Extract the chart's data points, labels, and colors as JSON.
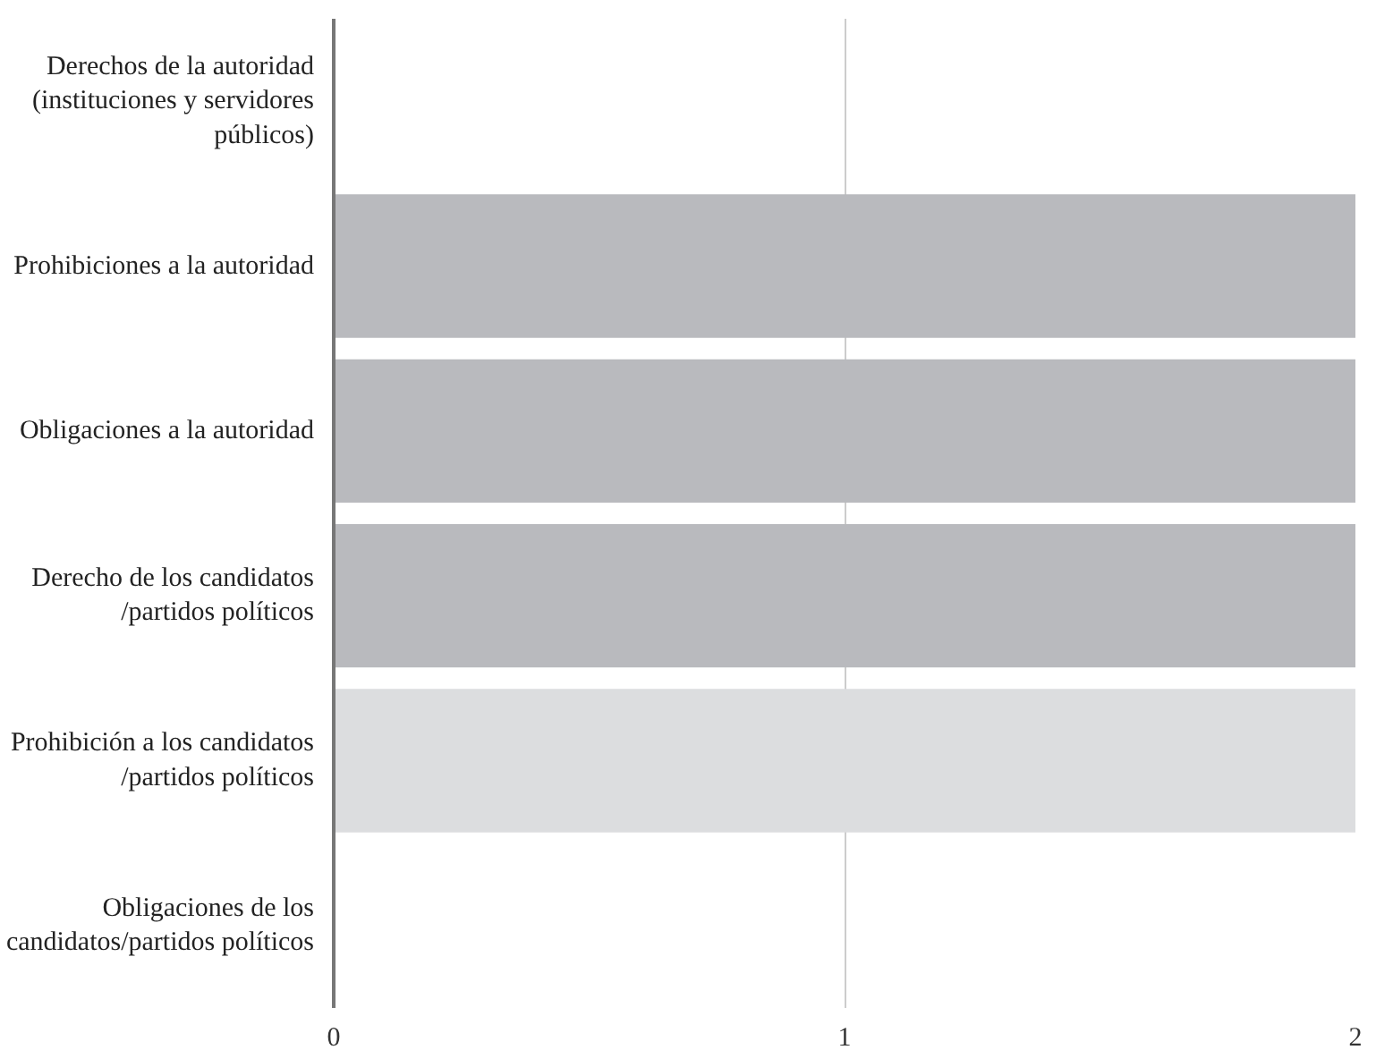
{
  "chart_data": {
    "type": "bar",
    "orientation": "horizontal",
    "categories": [
      "Derechos de la autoridad\n(instituciones y servidores\npúblicos)",
      "Prohibiciones a la autoridad",
      "Obligaciones a la autoridad",
      "Derecho de los candidatos\n/partidos políticos",
      "Prohibición a los candidatos\n/partidos políticos",
      "Obligaciones de los\ncandidatos/partidos políticos"
    ],
    "values": [
      0,
      2,
      2,
      2,
      2,
      0
    ],
    "colors": [
      "#b9babe",
      "#b9babe",
      "#b9babe",
      "#b9babe",
      "#dcdddf",
      "#b9babe"
    ],
    "xlim": [
      0,
      2
    ],
    "xticks": [
      0,
      1,
      2
    ],
    "grid": "x"
  }
}
